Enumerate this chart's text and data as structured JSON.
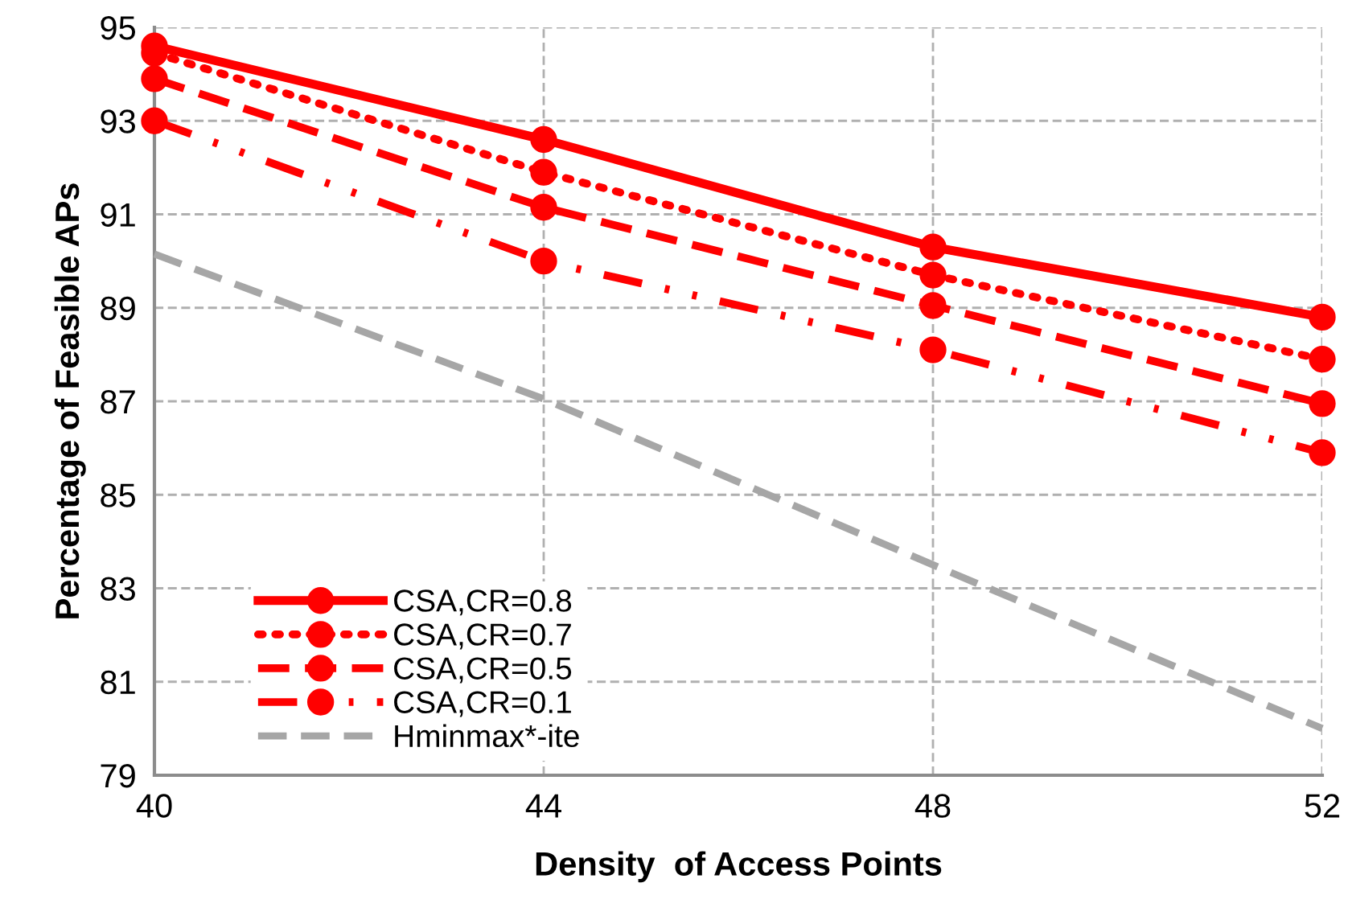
{
  "chart_data": {
    "type": "line",
    "xlabel": "Density  of Access Points",
    "ylabel": "Percentage of Feasible APs",
    "x": [
      40,
      44,
      48,
      52
    ],
    "xlim": [
      40,
      52
    ],
    "xticks": [
      40,
      44,
      48,
      52
    ],
    "ylim": [
      79,
      95
    ],
    "yticks": [
      79,
      81,
      83,
      85,
      87,
      89,
      91,
      93,
      95
    ],
    "grid": true,
    "legend": "bottom left",
    "series": [
      {
        "name": "CSA,CR=0.8",
        "color": "#ff0000",
        "values": [
          94.6,
          92.6,
          90.3,
          88.8
        ],
        "marker": "circle",
        "line_style": "solid"
      },
      {
        "name": "CSA,CR=0.7",
        "color": "#ff0000",
        "values": [
          94.45,
          91.9,
          89.7,
          87.9
        ],
        "marker": "circle",
        "line_style": "dotted"
      },
      {
        "name": "CSA,CR=0.5",
        "color": "#ff0000",
        "values": [
          93.9,
          91.15,
          89.05,
          86.95
        ],
        "marker": "circle",
        "line_style": "dashed"
      },
      {
        "name": "CSA,CR=0.1",
        "color": "#ff0000",
        "values": [
          93.0,
          90.0,
          88.1,
          85.9
        ],
        "marker": "circle",
        "line_style": "dashdotdot"
      },
      {
        "name": "Hminmax*-ite",
        "color": "#a6a6a6",
        "values": [
          90.15,
          87.05,
          83.5,
          80.0
        ],
        "marker": "none",
        "line_style": "dashed"
      }
    ]
  }
}
